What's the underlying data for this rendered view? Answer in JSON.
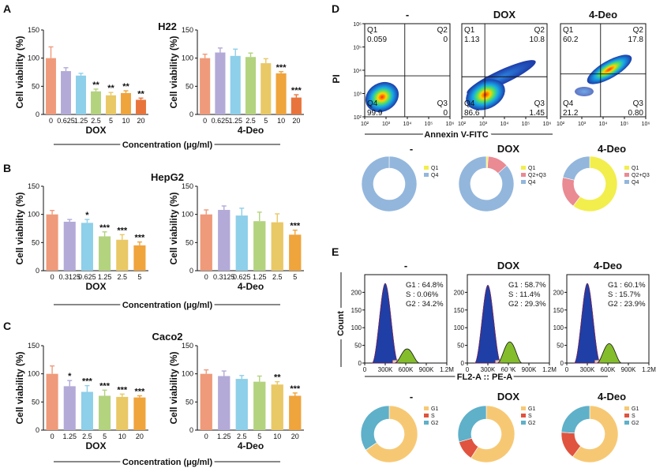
{
  "panels": {
    "A": {
      "letter": "A",
      "title": "H22",
      "ylabel": "Cell viability (%)",
      "concentration_label": "Concentration (μg/ml)",
      "left": {
        "drug": "DOX",
        "categories": [
          "0",
          "0.625",
          "1.25",
          "2.5",
          "5",
          "10",
          "20"
        ],
        "values": [
          100,
          77,
          69,
          41,
          34,
          38,
          26
        ],
        "errors": [
          20,
          6,
          4,
          4,
          5,
          4,
          3
        ],
        "sig": [
          "",
          "",
          "",
          "**",
          "**",
          "**",
          "**"
        ],
        "ylim": [
          0,
          150
        ],
        "yticks": [
          "0",
          "50",
          "100",
          "150"
        ]
      },
      "right": {
        "drug": "4-Deo",
        "categories": [
          "0",
          "0.625",
          "1.25",
          "2.5",
          "5",
          "10",
          "20"
        ],
        "values": [
          100,
          110,
          104,
          102,
          91,
          73,
          30
        ],
        "errors": [
          7,
          8,
          12,
          7,
          8,
          3,
          5
        ],
        "sig": [
          "",
          "",
          "",
          "",
          "",
          "***",
          "***"
        ],
        "ylim": [
          0,
          150
        ],
        "yticks": [
          "0",
          "50",
          "100",
          "150"
        ]
      }
    },
    "B": {
      "letter": "B",
      "title": "HepG2",
      "ylabel": "Cell viability (%)",
      "concentration_label": "Concentration (μg/ml)",
      "left": {
        "drug": "DOX",
        "categories": [
          "0",
          "0.3125",
          "0.625",
          "1.25",
          "2.5",
          "5"
        ],
        "values": [
          100,
          87,
          85,
          61,
          55,
          45
        ],
        "errors": [
          7,
          4,
          6,
          8,
          9,
          6
        ],
        "sig": [
          "",
          "",
          "*",
          "***",
          "***",
          "***"
        ],
        "ylim": [
          0,
          150
        ],
        "yticks": [
          "0",
          "50",
          "100",
          "150"
        ]
      },
      "right": {
        "drug": "4-Deo",
        "categories": [
          "0",
          "0.3125",
          "0.625",
          "1.25",
          "2.5",
          "5"
        ],
        "values": [
          100,
          108,
          98,
          88,
          86,
          64
        ],
        "errors": [
          8,
          7,
          13,
          16,
          15,
          8
        ],
        "sig": [
          "",
          "",
          "",
          "",
          "",
          "***"
        ],
        "ylim": [
          0,
          150
        ],
        "yticks": [
          "0",
          "50",
          "100",
          "150"
        ]
      }
    },
    "C": {
      "letter": "C",
      "title": "Caco2",
      "ylabel": "Cell viability (%)",
      "concentration_label": "Concentration (μg/ml)",
      "left": {
        "drug": "DOX",
        "categories": [
          "0",
          "1.25",
          "2.5",
          "5",
          "10",
          "20"
        ],
        "values": [
          100,
          78,
          68,
          61,
          59,
          58
        ],
        "errors": [
          14,
          10,
          11,
          10,
          5,
          3
        ],
        "sig": [
          "",
          "*",
          "***",
          "***",
          "***",
          "***"
        ],
        "ylim": [
          0,
          150
        ],
        "yticks": [
          "0",
          "50",
          "100",
          "150"
        ]
      },
      "right": {
        "drug": "4-Deo",
        "categories": [
          "0",
          "1.25",
          "2.5",
          "5",
          "10",
          "20"
        ],
        "values": [
          100,
          96,
          91,
          86,
          81,
          61
        ],
        "errors": [
          7,
          9,
          6,
          10,
          5,
          5
        ],
        "sig": [
          "",
          "",
          "",
          "",
          "**",
          "***"
        ],
        "ylim": [
          0,
          150
        ],
        "yticks": [
          "0",
          "50",
          "100",
          "150"
        ]
      }
    },
    "D": {
      "letter": "D",
      "xlabel": "Annexin V-FITC",
      "ylabel": "PI",
      "axis_ticks": [
        "10²",
        "10³",
        "10⁴",
        "10⁵",
        "10⁶"
      ],
      "y_axis_ticks": [
        "10²",
        "10³",
        "10⁴",
        "10⁵",
        "10⁶"
      ],
      "plots": [
        {
          "title": "-",
          "q1": "Q1",
          "q1_value": "0.059",
          "q2": "Q2",
          "q2_value": "0",
          "q3": "Q3",
          "q3_value": "0",
          "q4": "Q4",
          "q4_value": "99.9"
        },
        {
          "title": "DOX",
          "q1": "Q1",
          "q1_value": "1.13",
          "q2": "Q2",
          "q2_value": "10.8",
          "q3": "Q3",
          "q3_value": "1.45",
          "q4": "Q4",
          "q4_value": "86.6"
        },
        {
          "title": "4-Deo",
          "q1": "Q1",
          "q1_value": "60.2",
          "q2": "Q2",
          "q2_value": "17.8",
          "q3": "Q3",
          "q3_value": "0.80",
          "q4": "Q4",
          "q4_value": "21.2"
        }
      ],
      "donuts": [
        {
          "title": "-",
          "legend": [
            "Q1",
            "Q4"
          ],
          "legend_colors": [
            "#f2ee4c",
            "#93b6dc"
          ],
          "slices": [
            {
              "name": "Q1",
              "value": 0.059,
              "color": "#f2ee4c"
            },
            {
              "name": "Q4",
              "value": 99.9,
              "color": "#93b6dc"
            }
          ]
        },
        {
          "title": "DOX",
          "legend": [
            "Q1",
            "Q2+Q3",
            "Q4"
          ],
          "legend_colors": [
            "#f2ee4c",
            "#ea8a93",
            "#93b6dc"
          ],
          "slices": [
            {
              "name": "Q1",
              "value": 1.13,
              "color": "#f2ee4c"
            },
            {
              "name": "Q2+Q3",
              "value": 12.25,
              "color": "#ea8a93"
            },
            {
              "name": "Q4",
              "value": 86.6,
              "color": "#93b6dc"
            }
          ]
        },
        {
          "title": "4-Deo",
          "legend": [
            "Q1",
            "Q2+Q3",
            "Q4"
          ],
          "legend_colors": [
            "#f2ee4c",
            "#ea8a93",
            "#93b6dc"
          ],
          "slices": [
            {
              "name": "Q1",
              "value": 60.2,
              "color": "#f2ee4c"
            },
            {
              "name": "Q2+Q3",
              "value": 18.6,
              "color": "#ea8a93"
            },
            {
              "name": "Q4",
              "value": 21.2,
              "color": "#93b6dc"
            }
          ]
        }
      ]
    },
    "E": {
      "letter": "E",
      "xlabel": "FL2-A :: PE-A",
      "ylabel": "Count",
      "xticks": [
        "0",
        "300K",
        "600K",
        "900K",
        "1.2M"
      ],
      "yticks": [
        "0",
        "50",
        "100",
        "150",
        "200"
      ],
      "plots": [
        {
          "title": "-",
          "g1": "G1 : 64.8%",
          "s": "S : 0.06%",
          "g2": "G2 : 34.2%",
          "g1_peak": 225,
          "g2_peak": 40
        },
        {
          "title": "DOX",
          "g1": "G1 : 58.7%",
          "s": "S : 11.4%",
          "g2": "G2 : 29.3%",
          "g1_peak": 220,
          "g2_peak": 60
        },
        {
          "title": "4-Deo",
          "g1": "G1 : 60.1%",
          "s": "S : 15.7%",
          "g2": "G2 : 23.9%",
          "g1_peak": 225,
          "g2_peak": 55
        }
      ],
      "donuts": [
        {
          "title": "-",
          "legend": [
            "G1",
            "S",
            "G2"
          ],
          "legend_colors": [
            "#f7c873",
            "#e0533f",
            "#5fb0c9"
          ],
          "slices": [
            {
              "name": "G1",
              "value": 64.8,
              "color": "#f7c873"
            },
            {
              "name": "S",
              "value": 0.06,
              "color": "#e0533f"
            },
            {
              "name": "G2",
              "value": 34.2,
              "color": "#5fb0c9"
            }
          ]
        },
        {
          "title": "DOX",
          "legend": [
            "G1",
            "S",
            "G2"
          ],
          "legend_colors": [
            "#f7c873",
            "#e0533f",
            "#5fb0c9"
          ],
          "slices": [
            {
              "name": "G1",
              "value": 58.7,
              "color": "#f7c873"
            },
            {
              "name": "S",
              "value": 11.4,
              "color": "#e0533f"
            },
            {
              "name": "G2",
              "value": 29.3,
              "color": "#5fb0c9"
            }
          ]
        },
        {
          "title": "4-Deo",
          "legend": [
            "G1",
            "S",
            "G2"
          ],
          "legend_colors": [
            "#f7c873",
            "#e0533f",
            "#5fb0c9"
          ],
          "slices": [
            {
              "name": "G1",
              "value": 60.1,
              "color": "#f7c873"
            },
            {
              "name": "S",
              "value": 15.7,
              "color": "#e0533f"
            },
            {
              "name": "G2",
              "value": 23.9,
              "color": "#5fb0c9"
            }
          ]
        }
      ]
    }
  },
  "colors": {
    "bars": [
      "#ef9a7a",
      "#b3aad8",
      "#8ecfe9",
      "#b3d37e",
      "#e9c866",
      "#efa43c",
      "#e8743c"
    ],
    "donut_d": [
      "#f2ee4c",
      "#ea8a93",
      "#93b6dc"
    ],
    "donut_e": [
      "#f7c873",
      "#e0533f",
      "#5fb0c9"
    ]
  },
  "chart_data": [
    {
      "type": "bar",
      "title": "H22",
      "xlabel": "DOX",
      "ylabel": "Cell viability (%)",
      "categories": [
        "0",
        "0.625",
        "1.25",
        "2.5",
        "5",
        "10",
        "20"
      ],
      "values": [
        100,
        77,
        69,
        41,
        34,
        38,
        26
      ],
      "ylim": [
        0,
        150
      ]
    },
    {
      "type": "bar",
      "title": "H22",
      "xlabel": "4-Deo",
      "ylabel": "Cell viability (%)",
      "categories": [
        "0",
        "0.625",
        "1.25",
        "2.5",
        "5",
        "10",
        "20"
      ],
      "values": [
        100,
        110,
        104,
        102,
        91,
        73,
        30
      ],
      "ylim": [
        0,
        150
      ]
    },
    {
      "type": "bar",
      "title": "HepG2",
      "xlabel": "DOX",
      "ylabel": "Cell viability (%)",
      "categories": [
        "0",
        "0.3125",
        "0.625",
        "1.25",
        "2.5",
        "5"
      ],
      "values": [
        100,
        87,
        85,
        61,
        55,
        45
      ],
      "ylim": [
        0,
        150
      ]
    },
    {
      "type": "bar",
      "title": "HepG2",
      "xlabel": "4-Deo",
      "ylabel": "Cell viability (%)",
      "categories": [
        "0",
        "0.3125",
        "0.625",
        "1.25",
        "2.5",
        "5"
      ],
      "values": [
        100,
        108,
        98,
        88,
        86,
        64
      ],
      "ylim": [
        0,
        150
      ]
    },
    {
      "type": "bar",
      "title": "Caco2",
      "xlabel": "DOX",
      "ylabel": "Cell viability (%)",
      "categories": [
        "0",
        "1.25",
        "2.5",
        "5",
        "10",
        "20"
      ],
      "values": [
        100,
        78,
        68,
        61,
        59,
        58
      ],
      "ylim": [
        0,
        150
      ]
    },
    {
      "type": "bar",
      "title": "Caco2",
      "xlabel": "4-Deo",
      "ylabel": "Cell viability (%)",
      "categories": [
        "0",
        "1.25",
        "2.5",
        "5",
        "10",
        "20"
      ],
      "values": [
        100,
        96,
        91,
        86,
        81,
        61
      ],
      "ylim": [
        0,
        150
      ]
    },
    {
      "type": "pie",
      "title": "-",
      "labels": [
        "Q1",
        "Q4"
      ],
      "values": [
        0.059,
        99.9
      ]
    },
    {
      "type": "pie",
      "title": "DOX",
      "labels": [
        "Q1",
        "Q2+Q3",
        "Q4"
      ],
      "values": [
        1.13,
        12.25,
        86.6
      ]
    },
    {
      "type": "pie",
      "title": "4-Deo",
      "labels": [
        "Q1",
        "Q2+Q3",
        "Q4"
      ],
      "values": [
        60.2,
        18.6,
        21.2
      ]
    },
    {
      "type": "pie",
      "title": "-",
      "labels": [
        "G1",
        "S",
        "G2"
      ],
      "values": [
        64.8,
        0.06,
        34.2
      ]
    },
    {
      "type": "pie",
      "title": "DOX",
      "labels": [
        "G1",
        "S",
        "G2"
      ],
      "values": [
        58.7,
        11.4,
        29.3
      ]
    },
    {
      "type": "pie",
      "title": "4-Deo",
      "labels": [
        "G1",
        "S",
        "G2"
      ],
      "values": [
        60.1,
        15.7,
        23.9
      ]
    }
  ]
}
